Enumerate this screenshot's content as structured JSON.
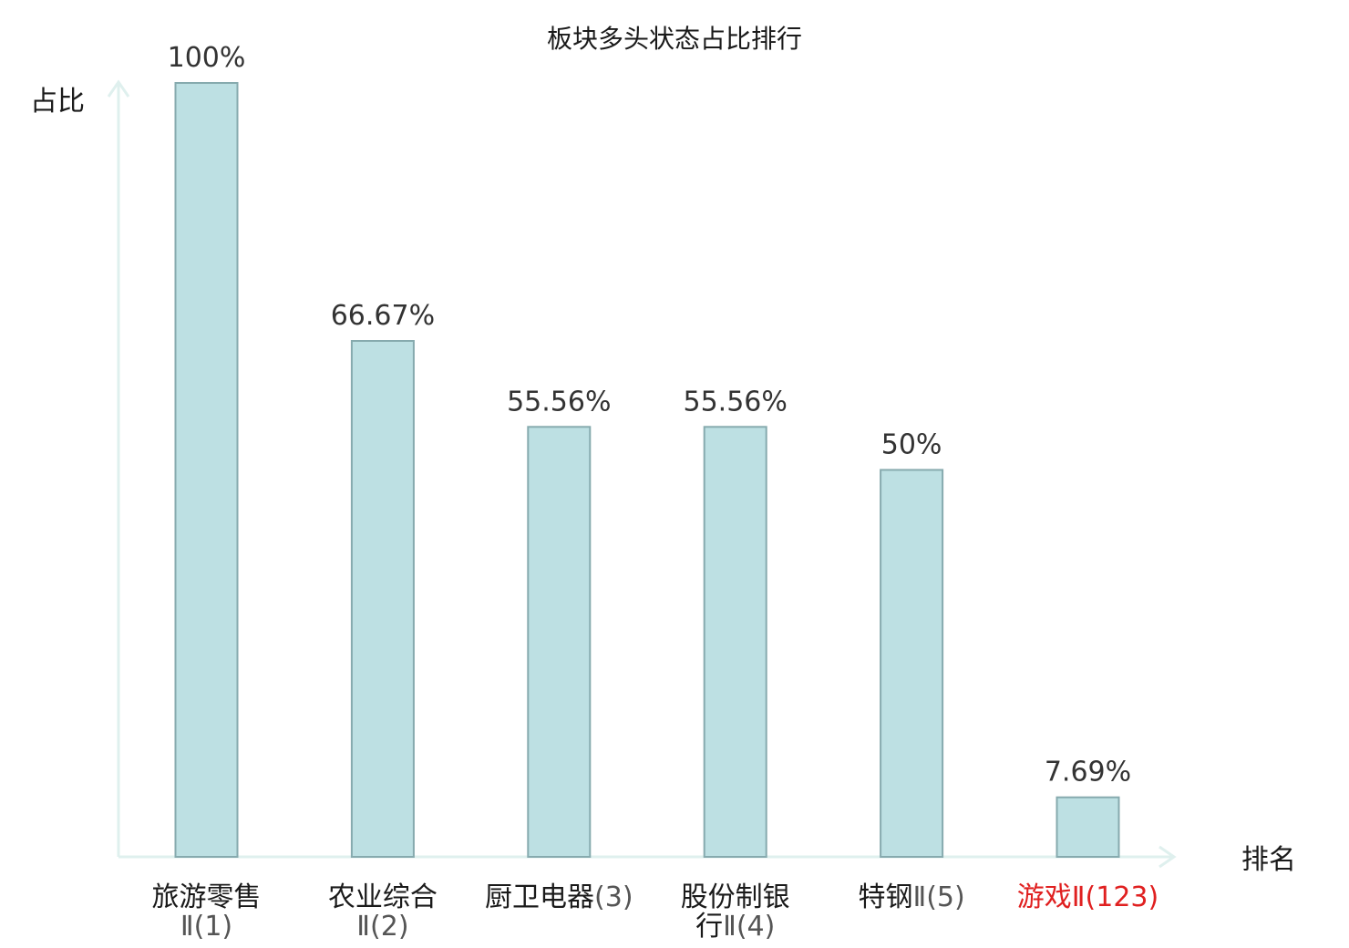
{
  "chart_data": {
    "type": "bar",
    "title": "板块多头状态占比排行",
    "ylabel": "占比",
    "xlabel": "排名",
    "ylim": [
      0,
      100
    ],
    "grid": false,
    "legend": "none",
    "categories": [
      {
        "lines": [
          {
            "name": "旅游零售",
            "suffix": ""
          },
          {
            "name": "",
            "suffix": "Ⅱ(1)"
          }
        ],
        "highlight": false
      },
      {
        "lines": [
          {
            "name": "农业综合",
            "suffix": ""
          },
          {
            "name": "",
            "suffix": "Ⅱ(2)"
          }
        ],
        "highlight": false
      },
      {
        "lines": [
          {
            "name": "厨卫电器",
            "suffix": "(3)"
          }
        ],
        "highlight": false
      },
      {
        "lines": [
          {
            "name": "股份制银",
            "suffix": ""
          },
          {
            "name": "行",
            "suffix": "Ⅱ(4)"
          }
        ],
        "highlight": false
      },
      {
        "lines": [
          {
            "name": "特钢",
            "suffix": "Ⅱ(5)"
          }
        ],
        "highlight": false
      },
      {
        "lines": [
          {
            "name": "游戏",
            "suffix": "Ⅱ(123)"
          }
        ],
        "highlight": true
      }
    ],
    "values": [
      100,
      66.67,
      55.56,
      55.56,
      50,
      7.69
    ],
    "value_labels": [
      "100%",
      "66.67%",
      "55.56%",
      "55.56%",
      "50%",
      "7.69%"
    ],
    "colors": {
      "bar_fill": "#bde0e3",
      "bar_stroke": "#86aaae",
      "axis": "#dff0ee",
      "highlight": "#e02020"
    }
  }
}
